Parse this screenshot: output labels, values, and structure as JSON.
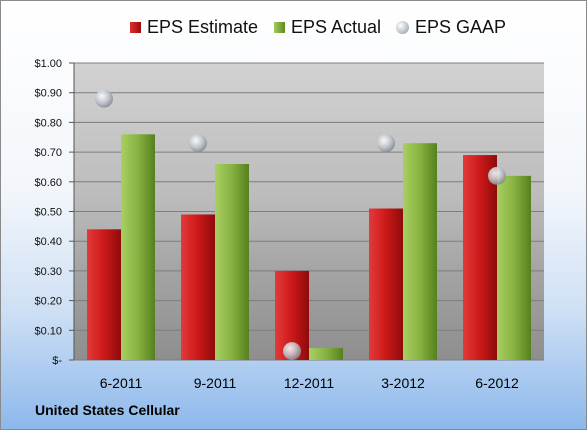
{
  "company": "United States Cellular",
  "chart_data": {
    "type": "bar",
    "categories": [
      "6-2011",
      "9-2011",
      "12-2011",
      "3-2012",
      "6-2012"
    ],
    "series": [
      {
        "name": "EPS Estimate",
        "type": "bar",
        "color": "#c8161b",
        "values": [
          0.44,
          0.49,
          0.3,
          0.51,
          0.69
        ]
      },
      {
        "name": "EPS Actual",
        "type": "bar",
        "color": "#7ea83a",
        "values": [
          0.76,
          0.66,
          0.04,
          0.73,
          0.62
        ]
      },
      {
        "name": "EPS GAAP",
        "type": "marker",
        "color": "#b0b6bc",
        "values": [
          0.88,
          0.73,
          0.03,
          0.73,
          0.62
        ]
      }
    ],
    "yticks": [
      "$-",
      "$0.10",
      "$0.20",
      "$0.30",
      "$0.40",
      "$0.50",
      "$0.60",
      "$0.70",
      "$0.80",
      "$0.90",
      "$1.00"
    ],
    "ylim": [
      0,
      1.0
    ],
    "grid": true,
    "legend_position": "top"
  }
}
